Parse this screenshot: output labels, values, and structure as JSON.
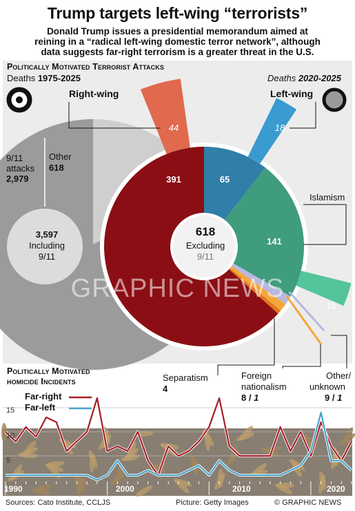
{
  "header": {
    "title": "Trump targets left-wing “terrorists”",
    "subtitle_lines": [
      "Donald Trump issues a presidential memorandum aimed at",
      "reining in a “radical left-wing domestic terror network”, although",
      "data suggests far-right terrorism is a greater threat in the U.S."
    ]
  },
  "attacks": {
    "heading": "Politically Motivated Terrorist Attacks",
    "deaths_left_label": "Deaths",
    "deaths_left_years": "1975-2025",
    "deaths_right_label": "Deaths",
    "deaths_right_years": "2020-2025",
    "total_value": "3,597",
    "total_label_1": "Including",
    "total_label_2": "9/11",
    "nine_eleven_label_1": "9/11",
    "nine_eleven_label_2": "attacks",
    "nine_eleven_value": "2,979",
    "other_label": "Other",
    "other_value": "618",
    "center_value": "618",
    "center_label_1": "Excluding",
    "center_label_2": "9/11",
    "right_wing_label": "Right-wing",
    "left_wing_label": "Left-wing",
    "islamism_label": "Islamism",
    "separatism_label": "Separatism",
    "separatism_value": "4",
    "foreign_label_1": "Foreign",
    "foreign_label_2": "nationalism",
    "foreign_value": "8",
    "foreign_recent": "1",
    "other_unknown_label_1": "Other/",
    "other_unknown_label_2": "unknown",
    "other_unknown_value": "9",
    "other_unknown_recent": "1",
    "watermark": "GRAPHIC NEWS"
  },
  "homicides": {
    "heading_1": "Politically Motivated",
    "heading_2": "homicide Incidents",
    "legend_far_right": "Far-right",
    "legend_far_left": "Far-left",
    "far_right_color": "#a51d24",
    "far_left_color": "#4aa3c8",
    "y_ticks": [
      "15",
      "10",
      "5"
    ],
    "x_year_labels": [
      "1990",
      "2000",
      "2010",
      "2020"
    ]
  },
  "colors": {
    "right_wing": "#8b0e14",
    "left_wing": "#2f7fa8",
    "islamism": "#3f9c7c",
    "separatism": "#e07a1e",
    "foreign_nationalism": "#f4a73a",
    "other_unknown": "#b9b8e0",
    "recent_right": "#e0694e",
    "recent_left": "#3a9bd0",
    "recent_islam": "#54c49a",
    "nine_eleven": "#9b9b9b",
    "other_total": "#cfcfcf"
  },
  "chart_data": [
    {
      "type": "pie",
      "title": "Deaths 1975-2025",
      "categories": [
        "9/11 attacks",
        "Other"
      ],
      "values": [
        2979,
        618
      ],
      "total": 3597
    },
    {
      "type": "pie",
      "title": "Deaths 1975-2025, excluding 9/11",
      "categories": [
        "Right-wing",
        "Left-wing",
        "Islamism",
        "Other/unknown",
        "Foreign nationalism",
        "Separatism"
      ],
      "values": [
        391,
        65,
        141,
        9,
        8,
        4
      ],
      "total": 618
    },
    {
      "type": "pie",
      "title": "Deaths 2020-2025",
      "categories": [
        "Right-wing",
        "Left-wing",
        "Islamism",
        "Other/unknown",
        "Foreign nationalism"
      ],
      "values": [
        44,
        18,
        15,
        1,
        1
      ]
    },
    {
      "type": "line",
      "title": "Politically Motivated homicide Incidents",
      "x": [
        1990,
        1991,
        1992,
        1993,
        1994,
        1995,
        1996,
        1997,
        1998,
        1999,
        2000,
        2001,
        2002,
        2003,
        2004,
        2005,
        2006,
        2007,
        2008,
        2009,
        2010,
        2011,
        2012,
        2013,
        2014,
        2015,
        2016,
        2017,
        2018,
        2019,
        2020,
        2021,
        2022,
        2023,
        2024
      ],
      "series": [
        {
          "name": "Far-right",
          "values": [
            10,
            8,
            11,
            9,
            13,
            12,
            6,
            8,
            10,
            17,
            6,
            7,
            6,
            10,
            4,
            1,
            7,
            5,
            6,
            8,
            11,
            17,
            7,
            5,
            5,
            5,
            5,
            11,
            6,
            10,
            5,
            12,
            7,
            4,
            8
          ]
        },
        {
          "name": "Far-left",
          "values": [
            1,
            1,
            1,
            1,
            1,
            1,
            1,
            1,
            1,
            0,
            1,
            4,
            1,
            1,
            2,
            1,
            1,
            1,
            2,
            3,
            1,
            4,
            2,
            1,
            1,
            1,
            1,
            1,
            2,
            3,
            6,
            14,
            4,
            4,
            2
          ]
        }
      ],
      "ylim": [
        0,
        17
      ],
      "xlim": [
        1990,
        2024
      ]
    }
  ],
  "footer": {
    "sources": "Sources: Cato Institute, CCLJS",
    "picture": "Picture: Getty Images",
    "credit": "© GRAPHIC NEWS"
  }
}
